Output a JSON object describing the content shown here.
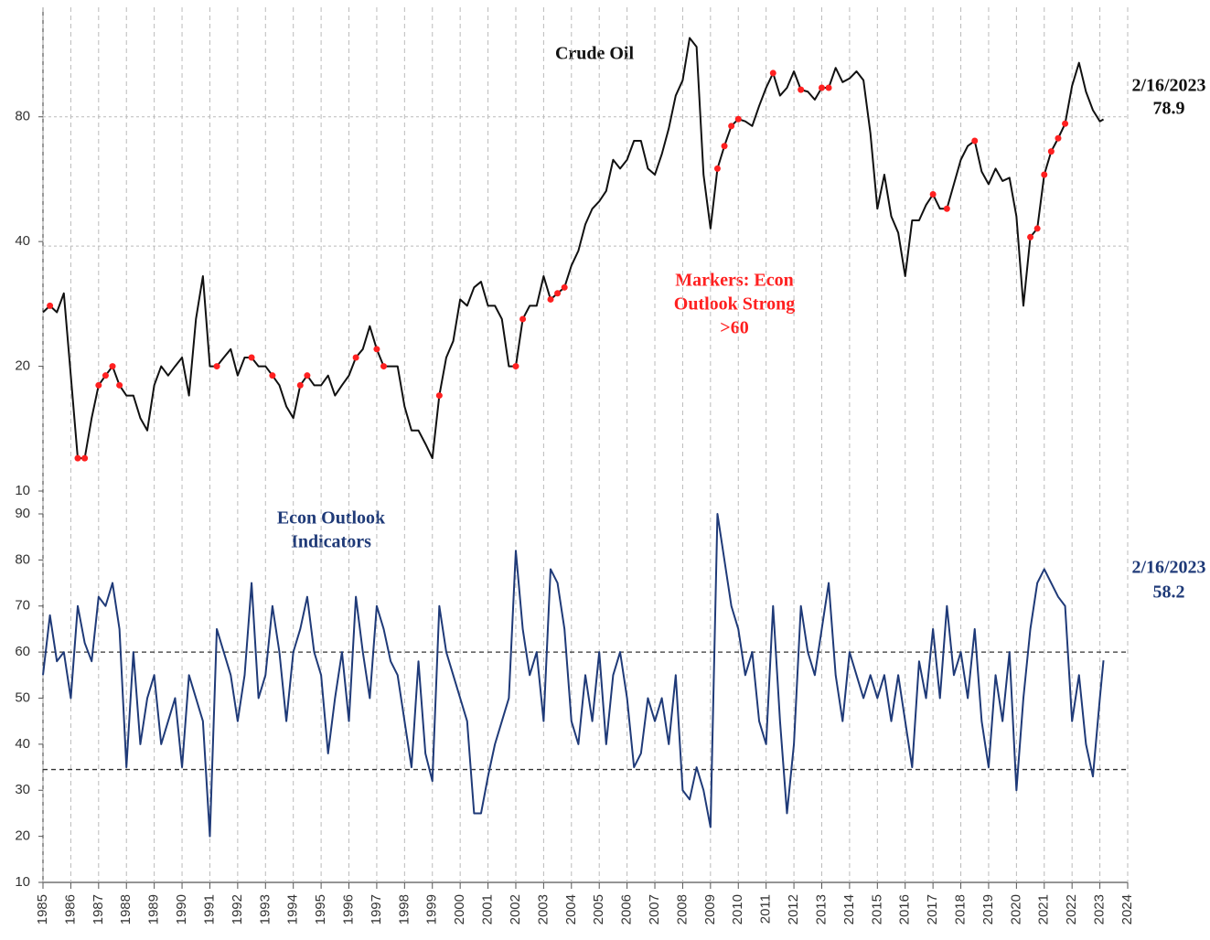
{
  "chart_data": [
    {
      "type": "line",
      "title": "Crude Oil",
      "log_scale": true,
      "ylim": [
        10,
        147
      ],
      "yticks": [
        10,
        20,
        40,
        80
      ],
      "xlim": [
        1985,
        2024
      ],
      "hlines": [
        80,
        39
      ],
      "annotation": [
        "Markers: Econ",
        "Outlook Strong",
        ">60"
      ],
      "last_date": "2/16/2023",
      "last_value_label": "78.9",
      "highlight_color": "#ff2020",
      "x": [
        1985,
        1985.25,
        1985.5,
        1985.75,
        1986,
        1986.25,
        1986.5,
        1986.75,
        1987,
        1987.25,
        1987.5,
        1987.75,
        1988,
        1988.25,
        1988.5,
        1988.75,
        1989,
        1989.25,
        1989.5,
        1989.75,
        1990,
        1990.25,
        1990.5,
        1990.75,
        1991,
        1991.25,
        1991.5,
        1991.75,
        1992,
        1992.25,
        1992.5,
        1992.75,
        1993,
        1993.25,
        1993.5,
        1993.75,
        1994,
        1994.25,
        1994.5,
        1994.75,
        1995,
        1995.25,
        1995.5,
        1995.75,
        1996,
        1996.25,
        1996.5,
        1996.75,
        1997,
        1997.25,
        1997.5,
        1997.75,
        1998,
        1998.25,
        1998.5,
        1998.75,
        1999,
        1999.25,
        1999.5,
        1999.75,
        2000,
        2000.25,
        2000.5,
        2000.75,
        2001,
        2001.25,
        2001.5,
        2001.75,
        2002,
        2002.25,
        2002.5,
        2002.75,
        2003,
        2003.25,
        2003.5,
        2003.75,
        2004,
        2004.25,
        2004.5,
        2004.75,
        2005,
        2005.25,
        2005.5,
        2005.75,
        2006,
        2006.25,
        2006.5,
        2006.75,
        2007,
        2007.25,
        2007.5,
        2007.75,
        2008,
        2008.25,
        2008.5,
        2008.75,
        2009,
        2009.25,
        2009.5,
        2009.75,
        2010,
        2010.25,
        2010.5,
        2010.75,
        2011,
        2011.25,
        2011.5,
        2011.75,
        2012,
        2012.25,
        2012.5,
        2012.75,
        2013,
        2013.25,
        2013.5,
        2013.75,
        2014,
        2014.25,
        2014.5,
        2014.75,
        2015,
        2015.25,
        2015.5,
        2015.75,
        2016,
        2016.25,
        2016.5,
        2016.75,
        2017,
        2017.25,
        2017.5,
        2017.75,
        2018,
        2018.25,
        2018.5,
        2018.75,
        2019,
        2019.25,
        2019.5,
        2019.75,
        2020,
        2020.25,
        2020.5,
        2020.75,
        2021,
        2021.25,
        2021.5,
        2021.75,
        2022,
        2022.25,
        2022.5,
        2022.75,
        2023,
        2023.13
      ],
      "series": [
        {
          "name": "Crude Oil",
          "color": "#111111",
          "values": [
            27,
            28,
            27,
            30,
            19,
            12,
            12,
            15,
            18,
            19,
            20,
            18,
            17,
            17,
            15,
            14,
            18,
            20,
            19,
            20,
            21,
            17,
            26,
            33,
            20,
            20,
            21,
            22,
            19,
            21,
            21,
            20,
            20,
            19,
            18,
            16,
            15,
            18,
            19,
            18,
            18,
            19,
            17,
            18,
            19,
            21,
            22,
            25,
            22,
            20,
            20,
            20,
            16,
            14,
            14,
            13,
            12,
            17,
            21,
            23,
            29,
            28,
            31,
            32,
            28,
            28,
            26,
            20,
            20,
            26,
            28,
            28,
            33,
            29,
            30,
            31,
            35,
            38,
            44,
            48,
            50,
            53,
            63,
            60,
            63,
            70,
            70,
            60,
            58,
            65,
            75,
            90,
            98,
            124,
            118,
            58,
            43,
            60,
            68,
            76,
            79,
            78,
            76,
            85,
            94,
            102,
            90,
            94,
            103,
            93,
            92,
            88,
            94,
            94,
            105,
            97,
            99,
            103,
            98,
            73,
            48,
            58,
            46,
            42,
            33,
            45,
            45,
            49,
            52,
            48,
            48,
            55,
            63,
            68,
            70,
            59,
            55,
            60,
            56,
            57,
            46,
            28,
            41,
            43,
            58,
            66,
            71,
            77,
            95,
            108,
            92,
            83,
            78,
            78.9
          ]
        }
      ]
    },
    {
      "type": "line",
      "title": [
        "Econ Outlook",
        "Indicators"
      ],
      "ylim": [
        10,
        90
      ],
      "yticks": [
        10,
        20,
        30,
        40,
        50,
        60,
        70,
        80,
        90
      ],
      "xlim": [
        1985,
        2024
      ],
      "xticks": [
        1985,
        1986,
        1987,
        1988,
        1989,
        1990,
        1991,
        1992,
        1993,
        1994,
        1995,
        1996,
        1997,
        1998,
        1999,
        2000,
        2001,
        2002,
        2003,
        2004,
        2005,
        2006,
        2007,
        2008,
        2009,
        2010,
        2011,
        2012,
        2013,
        2014,
        2015,
        2016,
        2017,
        2018,
        2019,
        2020,
        2021,
        2022,
        2023,
        2024
      ],
      "hlines": [
        60,
        34.5
      ],
      "last_date": "2/16/2023",
      "last_value_label": "58.2",
      "x": [
        1985,
        1985.25,
        1985.5,
        1985.75,
        1986,
        1986.25,
        1986.5,
        1986.75,
        1987,
        1987.25,
        1987.5,
        1987.75,
        1988,
        1988.25,
        1988.5,
        1988.75,
        1989,
        1989.25,
        1989.5,
        1989.75,
        1990,
        1990.25,
        1990.5,
        1990.75,
        1991,
        1991.25,
        1991.5,
        1991.75,
        1992,
        1992.25,
        1992.5,
        1992.75,
        1993,
        1993.25,
        1993.5,
        1993.75,
        1994,
        1994.25,
        1994.5,
        1994.75,
        1995,
        1995.25,
        1995.5,
        1995.75,
        1996,
        1996.25,
        1996.5,
        1996.75,
        1997,
        1997.25,
        1997.5,
        1997.75,
        1998,
        1998.25,
        1998.5,
        1998.75,
        1999,
        1999.25,
        1999.5,
        1999.75,
        2000,
        2000.25,
        2000.5,
        2000.75,
        2001,
        2001.25,
        2001.5,
        2001.75,
        2002,
        2002.25,
        2002.5,
        2002.75,
        2003,
        2003.25,
        2003.5,
        2003.75,
        2004,
        2004.25,
        2004.5,
        2004.75,
        2005,
        2005.25,
        2005.5,
        2005.75,
        2006,
        2006.25,
        2006.5,
        2006.75,
        2007,
        2007.25,
        2007.5,
        2007.75,
        2008,
        2008.25,
        2008.5,
        2008.75,
        2009,
        2009.25,
        2009.5,
        2009.75,
        2010,
        2010.25,
        2010.5,
        2010.75,
        2011,
        2011.25,
        2011.5,
        2011.75,
        2012,
        2012.25,
        2012.5,
        2012.75,
        2013,
        2013.25,
        2013.5,
        2013.75,
        2014,
        2014.25,
        2014.5,
        2014.75,
        2015,
        2015.25,
        2015.5,
        2015.75,
        2016,
        2016.25,
        2016.5,
        2016.75,
        2017,
        2017.25,
        2017.5,
        2017.75,
        2018,
        2018.25,
        2018.5,
        2018.75,
        2019,
        2019.25,
        2019.5,
        2019.75,
        2020,
        2020.25,
        2020.5,
        2020.75,
        2021,
        2021.25,
        2021.5,
        2021.75,
        2022,
        2022.25,
        2022.5,
        2022.75,
        2023,
        2023.13
      ],
      "series": [
        {
          "name": "Econ Outlook Indicators",
          "color": "#1f3a78",
          "values": [
            55,
            68,
            58,
            60,
            50,
            70,
            62,
            58,
            72,
            70,
            75,
            65,
            35,
            60,
            40,
            50,
            55,
            40,
            45,
            50,
            35,
            55,
            50,
            45,
            20,
            65,
            60,
            55,
            45,
            55,
            75,
            50,
            55,
            70,
            60,
            45,
            60,
            65,
            72,
            60,
            55,
            38,
            50,
            60,
            45,
            72,
            60,
            50,
            70,
            65,
            58,
            55,
            45,
            35,
            58,
            38,
            32,
            70,
            60,
            55,
            50,
            45,
            25,
            25,
            33,
            40,
            45,
            50,
            82,
            65,
            55,
            60,
            45,
            78,
            75,
            65,
            45,
            40,
            55,
            45,
            60,
            40,
            55,
            60,
            50,
            35,
            38,
            50,
            45,
            50,
            40,
            55,
            30,
            28,
            35,
            30,
            22,
            90,
            80,
            70,
            65,
            55,
            60,
            45,
            40,
            70,
            45,
            25,
            40,
            70,
            60,
            55,
            65,
            75,
            55,
            45,
            60,
            55,
            50,
            55,
            50,
            55,
            45,
            55,
            45,
            35,
            58,
            50,
            65,
            50,
            70,
            55,
            60,
            50,
            65,
            45,
            35,
            55,
            45,
            60,
            30,
            50,
            65,
            75,
            78,
            75,
            72,
            70,
            45,
            55,
            40,
            33,
            50,
            58.2
          ]
        }
      ]
    }
  ]
}
